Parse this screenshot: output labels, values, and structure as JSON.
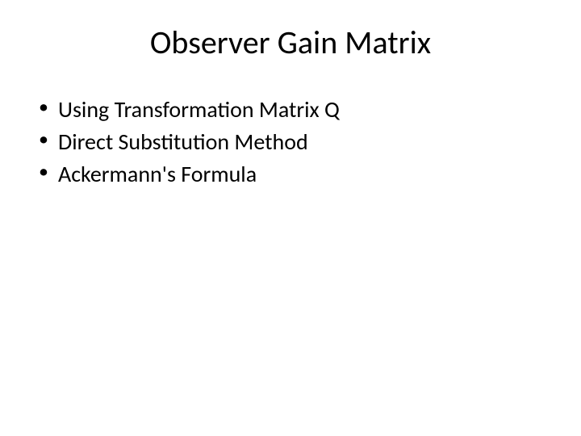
{
  "slide": {
    "title": "Observer Gain Matrix",
    "bullets": [
      "Using Transformation Matrix Q",
      "Direct Substitution Method",
      "Ackermann's Formula"
    ],
    "styling": {
      "background_color": "#ffffff",
      "text_color": "#000000",
      "title_fontsize": 40,
      "title_fontweight": 400,
      "bullet_fontsize": 28,
      "font_family": "Calibri",
      "title_align": "center",
      "bullet_marker": "•"
    }
  }
}
